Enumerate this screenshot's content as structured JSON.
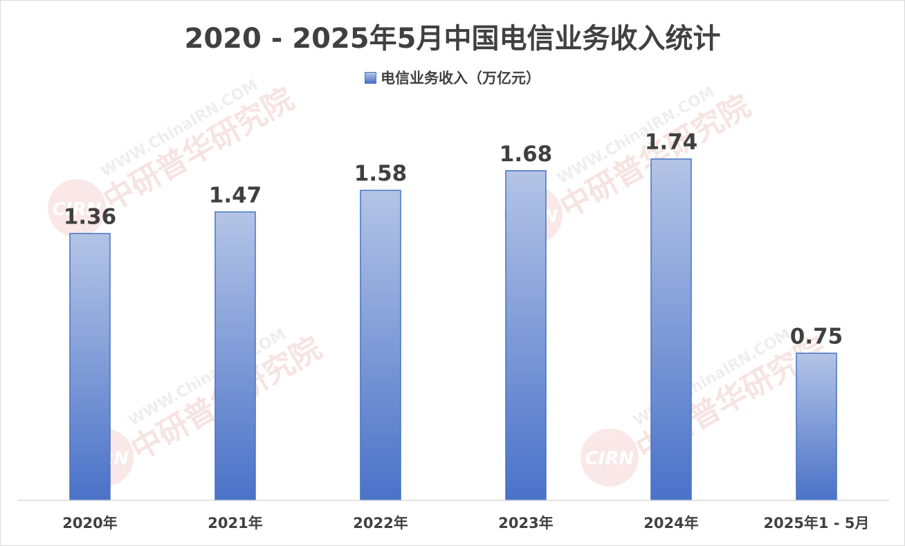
{
  "chart_data": {
    "type": "bar",
    "title": "2020 - 2025年5月中国电信业务收入统计",
    "categories": [
      "2020年",
      "2021年",
      "2022年",
      "2023年",
      "2024年",
      "2025年1 - 5月"
    ],
    "series": [
      {
        "name": "电信业务收入（万亿元）",
        "values": [
          1.36,
          1.47,
          1.58,
          1.68,
          1.74,
          0.75
        ]
      }
    ],
    "value_labels": [
      "1.36",
      "1.47",
      "1.58",
      "1.68",
      "1.74",
      "0.75"
    ],
    "ylim": [
      0,
      2.3
    ],
    "grid": false,
    "legend_position": "top",
    "colors": {
      "bar_top": "#b4c4e6",
      "bar_bottom": "#4a72c8",
      "bar_border": "#4472c4",
      "text": "#404040",
      "axis": "#d9d9d9"
    }
  },
  "watermark": {
    "url_text": "WWW.ChinaIRN.COM",
    "cn_text": "中研普华研究院",
    "logo_text": "CIRN"
  }
}
